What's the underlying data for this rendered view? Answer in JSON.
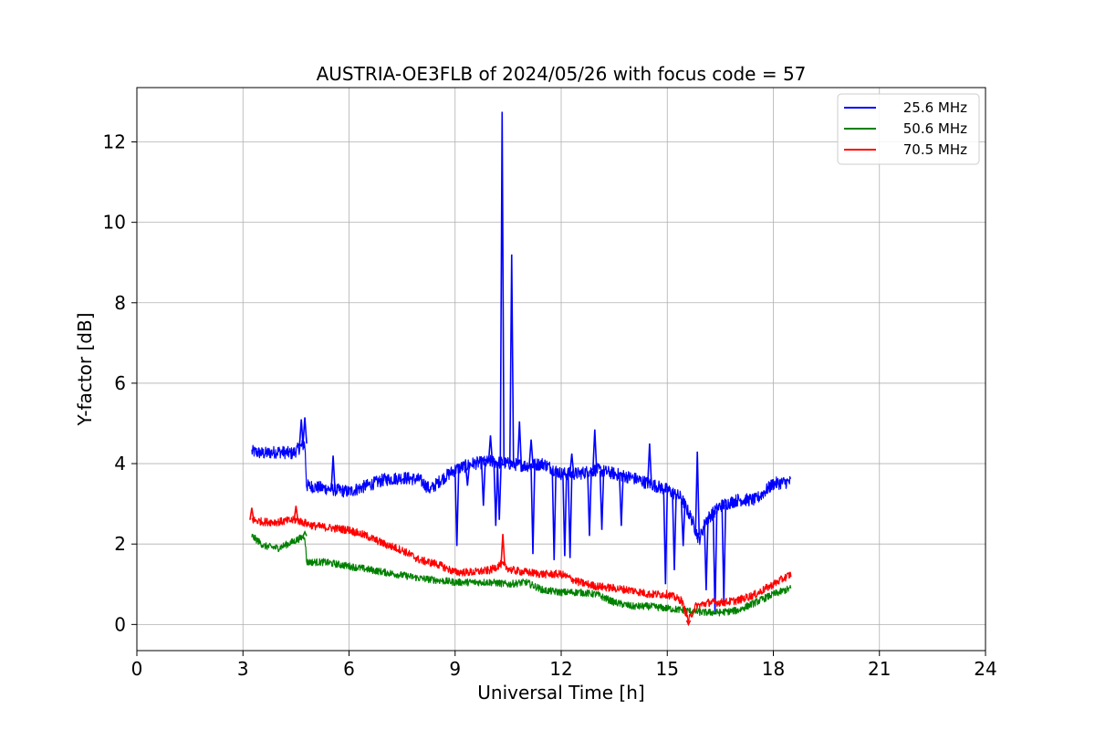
{
  "chart_data": {
    "type": "line",
    "title": "AUSTRIA-OE3FLB of 2024/05/26 with focus code = 57",
    "xlabel": "Universal Time [h]",
    "ylabel": "Y-factor [dB]",
    "xlim": [
      0,
      24
    ],
    "ylim": [
      -0.65,
      13.35
    ],
    "xticks": [
      0,
      3,
      6,
      9,
      12,
      15,
      18,
      21,
      24
    ],
    "yticks": [
      0,
      2,
      4,
      6,
      8,
      10,
      12
    ],
    "grid": true,
    "legend_position": "top-right",
    "series": [
      {
        "name": "25.6 MHz",
        "color": "#0000ff",
        "noise": 0.16,
        "points": [
          [
            3.25,
            4.3
          ],
          [
            3.6,
            4.25
          ],
          [
            4.0,
            4.3
          ],
          [
            4.4,
            4.25
          ],
          [
            4.75,
            4.5
          ],
          [
            4.8,
            3.45
          ],
          [
            5.2,
            3.4
          ],
          [
            5.6,
            3.35
          ],
          [
            6.0,
            3.3
          ],
          [
            6.5,
            3.45
          ],
          [
            7.0,
            3.6
          ],
          [
            7.5,
            3.65
          ],
          [
            8.0,
            3.6
          ],
          [
            8.3,
            3.35
          ],
          [
            8.6,
            3.6
          ],
          [
            9.0,
            3.85
          ],
          [
            9.5,
            4.0
          ],
          [
            10.0,
            4.05
          ],
          [
            10.5,
            4.0
          ],
          [
            11.0,
            3.95
          ],
          [
            11.5,
            4.0
          ],
          [
            12.0,
            3.75
          ],
          [
            12.5,
            3.75
          ],
          [
            13.0,
            3.85
          ],
          [
            13.5,
            3.75
          ],
          [
            14.0,
            3.65
          ],
          [
            14.5,
            3.5
          ],
          [
            15.0,
            3.35
          ],
          [
            15.4,
            3.15
          ],
          [
            15.7,
            2.6
          ],
          [
            15.9,
            2.1
          ],
          [
            16.1,
            2.6
          ],
          [
            16.5,
            2.95
          ],
          [
            17.0,
            3.1
          ],
          [
            17.5,
            3.1
          ],
          [
            18.0,
            3.5
          ],
          [
            18.5,
            3.55
          ]
        ],
        "spikes": [
          [
            4.65,
            5.1
          ],
          [
            4.75,
            5.15
          ],
          [
            5.55,
            4.2
          ],
          [
            9.05,
            1.95
          ],
          [
            9.35,
            3.45
          ],
          [
            9.8,
            2.95
          ],
          [
            10.0,
            4.7
          ],
          [
            10.15,
            2.45
          ],
          [
            10.25,
            2.6
          ],
          [
            10.33,
            12.75
          ],
          [
            10.6,
            9.2
          ],
          [
            10.82,
            5.05
          ],
          [
            11.2,
            1.75
          ],
          [
            11.15,
            4.6
          ],
          [
            11.8,
            1.6
          ],
          [
            12.1,
            1.7
          ],
          [
            12.25,
            1.65
          ],
          [
            12.3,
            4.25
          ],
          [
            12.8,
            2.2
          ],
          [
            12.95,
            4.85
          ],
          [
            13.15,
            2.35
          ],
          [
            13.7,
            2.45
          ],
          [
            14.5,
            4.5
          ],
          [
            14.95,
            1.0
          ],
          [
            15.2,
            1.35
          ],
          [
            15.45,
            1.95
          ],
          [
            15.85,
            4.3
          ],
          [
            16.1,
            0.85
          ],
          [
            16.35,
            0.25
          ],
          [
            16.6,
            0.55
          ]
        ]
      },
      {
        "name": "50.6 MHz",
        "color": "#008000",
        "noise": 0.09,
        "points": [
          [
            3.25,
            2.2
          ],
          [
            3.6,
            1.95
          ],
          [
            4.0,
            1.9
          ],
          [
            4.4,
            2.05
          ],
          [
            4.75,
            2.2
          ],
          [
            4.8,
            1.55
          ],
          [
            5.3,
            1.55
          ],
          [
            6.0,
            1.45
          ],
          [
            7.0,
            1.3
          ],
          [
            8.0,
            1.15
          ],
          [
            9.0,
            1.05
          ],
          [
            10.0,
            1.05
          ],
          [
            10.5,
            1.0
          ],
          [
            11.0,
            1.05
          ],
          [
            11.5,
            0.85
          ],
          [
            12.0,
            0.8
          ],
          [
            12.5,
            0.8
          ],
          [
            13.0,
            0.75
          ],
          [
            13.5,
            0.55
          ],
          [
            14.0,
            0.45
          ],
          [
            14.5,
            0.45
          ],
          [
            15.0,
            0.4
          ],
          [
            15.5,
            0.35
          ],
          [
            16.0,
            0.3
          ],
          [
            16.5,
            0.3
          ],
          [
            17.0,
            0.35
          ],
          [
            17.5,
            0.55
          ],
          [
            18.0,
            0.75
          ],
          [
            18.5,
            0.9
          ]
        ],
        "spikes": [
          [
            4.75,
            2.3
          ]
        ]
      },
      {
        "name": "70.5 MHz",
        "color": "#ff0000",
        "noise": 0.1,
        "points": [
          [
            3.25,
            2.6
          ],
          [
            3.6,
            2.55
          ],
          [
            4.0,
            2.55
          ],
          [
            4.5,
            2.6
          ],
          [
            5.0,
            2.45
          ],
          [
            5.5,
            2.4
          ],
          [
            6.0,
            2.35
          ],
          [
            6.5,
            2.2
          ],
          [
            7.0,
            2.0
          ],
          [
            7.5,
            1.85
          ],
          [
            8.0,
            1.6
          ],
          [
            8.5,
            1.5
          ],
          [
            9.0,
            1.3
          ],
          [
            9.5,
            1.3
          ],
          [
            10.0,
            1.35
          ],
          [
            10.3,
            1.5
          ],
          [
            10.6,
            1.35
          ],
          [
            11.0,
            1.3
          ],
          [
            11.5,
            1.25
          ],
          [
            12.0,
            1.25
          ],
          [
            12.5,
            1.05
          ],
          [
            13.0,
            0.95
          ],
          [
            13.5,
            0.9
          ],
          [
            14.0,
            0.85
          ],
          [
            14.5,
            0.75
          ],
          [
            15.0,
            0.75
          ],
          [
            15.4,
            0.6
          ],
          [
            15.6,
            0.1
          ],
          [
            15.8,
            0.45
          ],
          [
            16.2,
            0.55
          ],
          [
            16.6,
            0.55
          ],
          [
            17.0,
            0.6
          ],
          [
            17.5,
            0.75
          ],
          [
            18.0,
            1.0
          ],
          [
            18.5,
            1.25
          ]
        ],
        "spikes": [
          [
            10.35,
            2.25
          ],
          [
            4.5,
            2.95
          ],
          [
            3.25,
            2.9
          ],
          [
            15.6,
            0.0
          ]
        ]
      }
    ]
  }
}
